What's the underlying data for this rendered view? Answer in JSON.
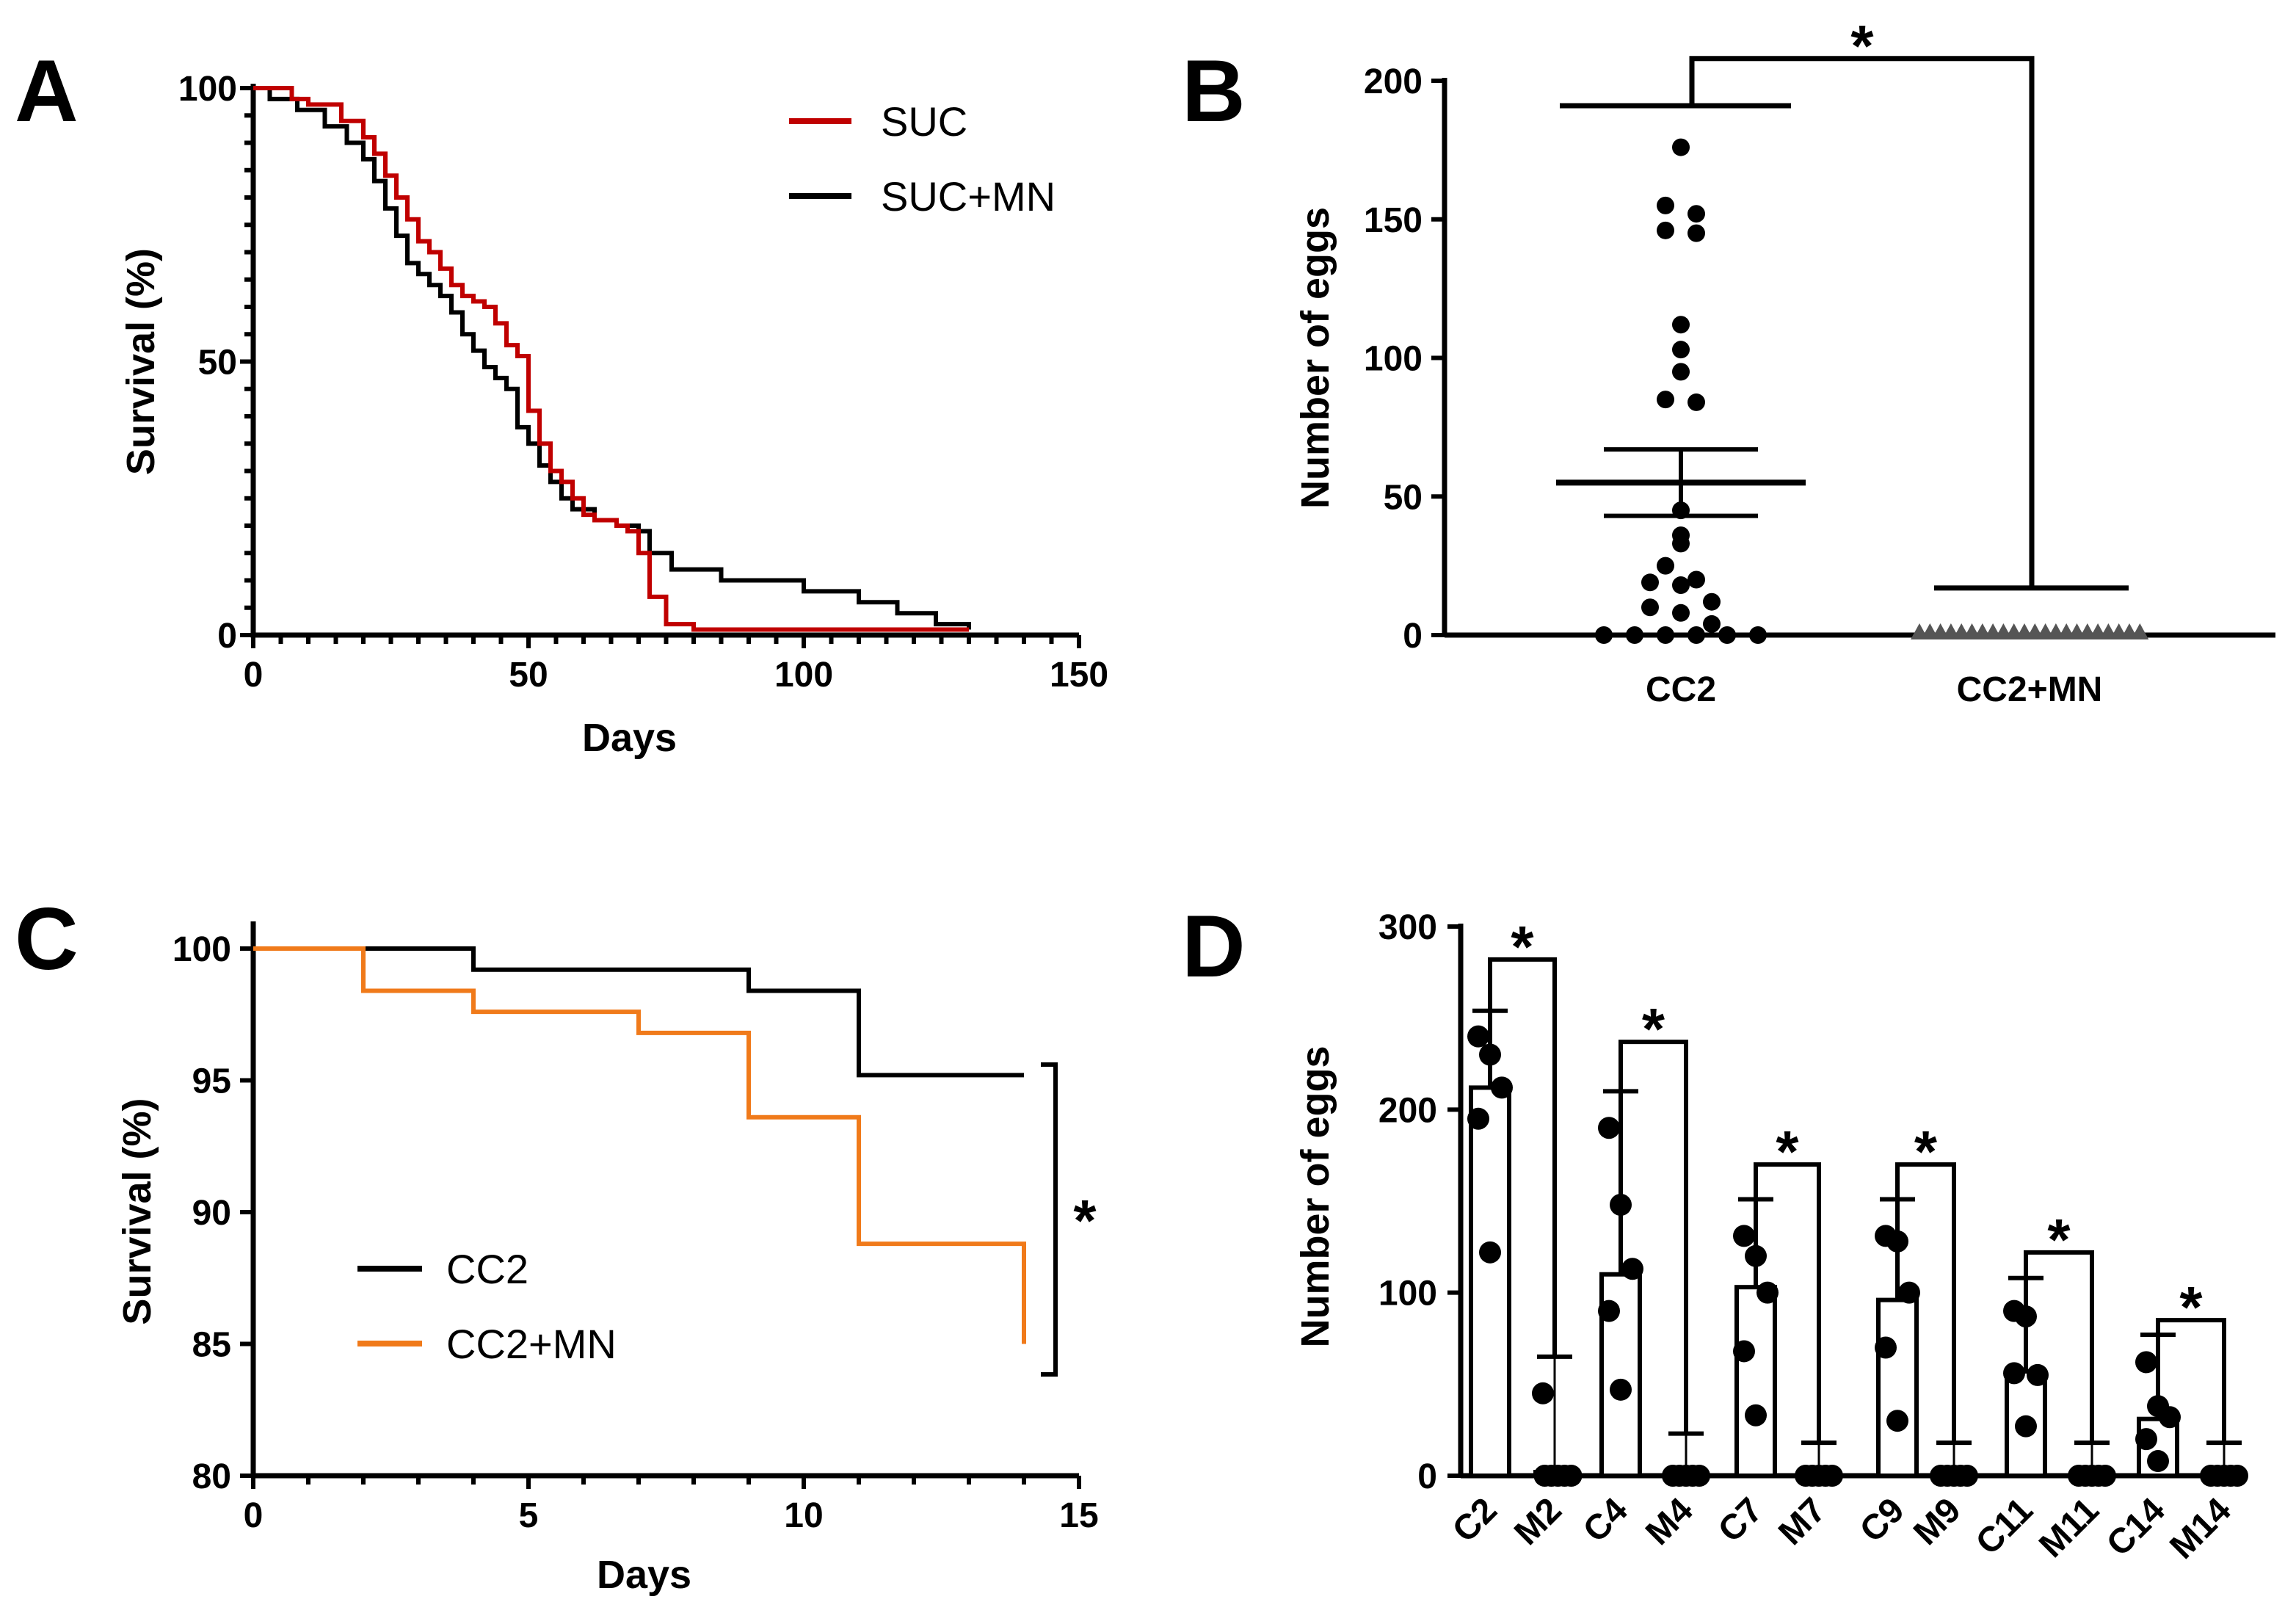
{
  "colors": {
    "black": "#000000",
    "red": "#c00000",
    "orange": "#f07a1a",
    "gray": "#555555"
  },
  "chart_data": [
    {
      "panel": "A",
      "type": "line",
      "subtype": "kaplan-meier",
      "xlabel": "Days",
      "ylabel": "Survival (%)",
      "xlim": [
        0,
        150
      ],
      "ylim": [
        0,
        100
      ],
      "xticks": [
        "0",
        "50",
        "100",
        "150"
      ],
      "yticks": [
        "0",
        "50",
        "100"
      ],
      "legend_position": "top-right",
      "series": [
        {
          "name": "SUC",
          "color": "#c00000",
          "x": [
            0,
            7,
            10,
            16,
            20,
            22,
            24,
            26,
            28,
            30,
            32,
            34,
            36,
            38,
            40,
            42,
            44,
            46,
            48,
            50,
            52,
            54,
            56,
            58,
            60,
            62,
            64,
            66,
            68,
            70,
            72,
            75,
            80,
            100,
            130
          ],
          "y": [
            100,
            98,
            97,
            94,
            91,
            88,
            84,
            80,
            76,
            72,
            70,
            67,
            64,
            62,
            61,
            60,
            57,
            53,
            51,
            41,
            35,
            30,
            28,
            25,
            22,
            21,
            21,
            20,
            19,
            15,
            7,
            2,
            1,
            1,
            1
          ]
        },
        {
          "name": "SUC+MN",
          "color": "#000000",
          "x": [
            0,
            3,
            8,
            13,
            17,
            20,
            22,
            24,
            26,
            28,
            30,
            32,
            34,
            36,
            38,
            40,
            42,
            44,
            46,
            48,
            50,
            52,
            54,
            56,
            58,
            62,
            66,
            70,
            72,
            76,
            85,
            100,
            110,
            117,
            124,
            130
          ],
          "y": [
            100,
            98,
            96,
            93,
            90,
            87,
            83,
            78,
            73,
            68,
            66,
            64,
            62,
            59,
            55,
            52,
            49,
            47,
            45,
            38,
            35,
            31,
            28,
            25,
            23,
            21,
            20,
            19,
            15,
            12,
            10,
            8,
            6,
            4,
            2,
            1
          ]
        }
      ]
    },
    {
      "panel": "B",
      "type": "scatter",
      "subtype": "dot-plot mean ± SEM",
      "ylabel": "Number of eggs",
      "ylim": [
        0,
        200
      ],
      "yticks": [
        "0",
        "50",
        "100",
        "150",
        "200"
      ],
      "categories": [
        "CC2",
        "CC2+MN"
      ],
      "groups": [
        {
          "name": "CC2",
          "mean": 55,
          "sem_low": 43,
          "sem_high": 67,
          "values": [
            176,
            155,
            152,
            146,
            145,
            112,
            103,
            95,
            85,
            84,
            45,
            36,
            33,
            25,
            20,
            19,
            18,
            12,
            10,
            8,
            4,
            0,
            0,
            0,
            0,
            0,
            0
          ]
        },
        {
          "name": "CC2+MN",
          "mean": 0,
          "sem_low": 0,
          "sem_high": 0,
          "values": [
            0,
            0,
            0,
            0,
            0,
            0,
            0,
            0,
            0,
            0,
            0,
            0,
            0,
            0,
            0,
            0,
            0,
            0,
            0,
            0,
            0,
            0
          ]
        }
      ],
      "bracket": {
        "low_bars": [
          191,
          17
        ],
        "top": 208,
        "label": "*"
      }
    },
    {
      "panel": "C",
      "type": "line",
      "subtype": "kaplan-meier",
      "xlabel": "Days",
      "ylabel": "Survival (%)",
      "xlim": [
        0,
        15
      ],
      "ylim": [
        80,
        101
      ],
      "xticks": [
        "0",
        "5",
        "10",
        "15"
      ],
      "yticks": [
        "80",
        "85",
        "90",
        "95",
        "100"
      ],
      "legend_position": "bottom-left",
      "series": [
        {
          "name": "CC2",
          "color": "#000000",
          "x": [
            0,
            4,
            9,
            11,
            14
          ],
          "y": [
            100,
            99.2,
            98.4,
            95.2,
            95.2
          ]
        },
        {
          "name": "CC2+MN",
          "color": "#f07a1a",
          "x": [
            0,
            2,
            4,
            7,
            9,
            11,
            14,
            14
          ],
          "y": [
            100,
            98.4,
            97.6,
            96.8,
            93.6,
            88.8,
            88.8,
            85
          ]
        }
      ],
      "bracket_label": "*"
    },
    {
      "panel": "D",
      "type": "bar",
      "subtype": "bars with individual points",
      "ylabel": "Number of eggs",
      "ylim": [
        0,
        300
      ],
      "yticks": [
        "0",
        "100",
        "200",
        "300"
      ],
      "categories": [
        "C2",
        "M2",
        "C4",
        "M4",
        "C7",
        "M7",
        "C9",
        "M9",
        "C11",
        "M11",
        "C14",
        "M14"
      ],
      "values": [
        212,
        2,
        110,
        0,
        103,
        0,
        96,
        0,
        57,
        0,
        31,
        0
      ],
      "error_high": [
        254,
        65,
        210,
        23,
        151,
        18,
        151,
        18,
        108,
        18,
        77,
        18
      ],
      "points": [
        [
          240,
          230,
          212,
          195,
          122
        ],
        [
          45,
          0,
          0,
          0,
          0,
          0
        ],
        [
          190,
          148,
          113,
          90,
          47
        ],
        [
          0,
          0,
          0,
          0,
          0
        ],
        [
          131,
          120,
          100,
          68,
          33
        ],
        [
          0,
          0,
          0,
          0,
          0
        ],
        [
          131,
          128,
          100,
          70,
          30
        ],
        [
          0,
          0,
          0,
          0,
          0
        ],
        [
          90,
          87,
          55,
          56,
          27
        ],
        [
          0,
          0,
          0,
          0,
          0
        ],
        [
          62,
          38,
          32,
          20,
          8
        ],
        [
          0,
          0,
          0,
          0,
          0
        ]
      ],
      "significance": [
        {
          "pair": [
            "C2",
            "M2"
          ],
          "top": 282,
          "label": "*"
        },
        {
          "pair": [
            "C4",
            "M4"
          ],
          "top": 237,
          "label": "*"
        },
        {
          "pair": [
            "C7",
            "M7"
          ],
          "top": 170,
          "label": "*"
        },
        {
          "pair": [
            "C9",
            "M9"
          ],
          "top": 170,
          "label": "*"
        },
        {
          "pair": [
            "C11",
            "M11"
          ],
          "top": 122,
          "label": "*"
        },
        {
          "pair": [
            "C14",
            "M14"
          ],
          "top": 85,
          "label": "*"
        }
      ]
    }
  ],
  "panel_labels": {
    "a": "A",
    "b": "B",
    "c": "C",
    "d": "D"
  }
}
